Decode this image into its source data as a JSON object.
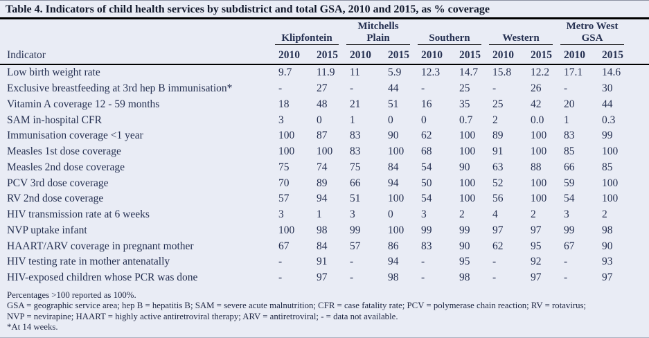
{
  "title": "Table 4. Indicators of child health services by subdistrict and total GSA, 2010 and 2015, as % coverage",
  "table": {
    "indicator_header": "Indicator",
    "year_columns": [
      "2010",
      "2015"
    ],
    "groups": [
      {
        "label": "Klipfontein"
      },
      {
        "label": "Mitchells Plain"
      },
      {
        "label": "Southern"
      },
      {
        "label": "Western"
      },
      {
        "label": "Metro West GSA"
      }
    ],
    "rows": [
      {
        "indicator": "Low birth weight rate",
        "values": [
          "9.7",
          "11.9",
          "11",
          "5.9",
          "12.3",
          "14.7",
          "15.8",
          "12.2",
          "17.1",
          "14.6"
        ]
      },
      {
        "indicator": "Exclusive breastfeeding at 3rd hep B immunisation*",
        "values": [
          "-",
          "27",
          "-",
          "44",
          "-",
          "25",
          "-",
          "26",
          "-",
          "30"
        ]
      },
      {
        "indicator": "Vitamin A coverage 12 - 59 months",
        "values": [
          "18",
          "48",
          "21",
          "51",
          "16",
          "35",
          "25",
          "42",
          "20",
          "44"
        ]
      },
      {
        "indicator": "SAM in-hospital CFR",
        "values": [
          "3",
          "0",
          "1",
          "0",
          "0",
          "0.7",
          "2",
          "0.0",
          "1",
          "0.3"
        ]
      },
      {
        "indicator": "Immunisation coverage <1 year",
        "values": [
          "100",
          "87",
          "83",
          "90",
          "62",
          "100",
          "89",
          "100",
          "83",
          "99"
        ]
      },
      {
        "indicator": "Measles 1st dose coverage",
        "values": [
          "100",
          "100",
          "83",
          "100",
          "68",
          "100",
          "91",
          "100",
          "85",
          "100"
        ]
      },
      {
        "indicator": "Measles 2nd dose coverage",
        "values": [
          "75",
          "74",
          "75",
          "84",
          "54",
          "90",
          "63",
          "88",
          "66",
          "85"
        ]
      },
      {
        "indicator": "PCV 3rd dose coverage",
        "values": [
          "70",
          "89",
          "66",
          "94",
          "50",
          "100",
          "52",
          "100",
          "59",
          "100"
        ]
      },
      {
        "indicator": "RV 2nd dose coverage",
        "values": [
          "57",
          "94",
          "51",
          "100",
          "54",
          "100",
          "56",
          "100",
          "54",
          "100"
        ]
      },
      {
        "indicator": "HIV transmission rate at 6 weeks",
        "values": [
          "3",
          "1",
          "3",
          "0",
          "3",
          "2",
          "4",
          "2",
          "3",
          "2"
        ]
      },
      {
        "indicator": "NVP uptake infant",
        "values": [
          "100",
          "98",
          "99",
          "100",
          "99",
          "99",
          "97",
          "97",
          "99",
          "98"
        ]
      },
      {
        "indicator": "HAART/ARV coverage in pregnant mother",
        "values": [
          "67",
          "84",
          "57",
          "86",
          "83",
          "90",
          "62",
          "95",
          "67",
          "90"
        ]
      },
      {
        "indicator": "HIV testing rate in mother antenatally",
        "values": [
          "-",
          "91",
          "-",
          "94",
          "-",
          "95",
          "-",
          "92",
          "-",
          "93"
        ]
      },
      {
        "indicator": "HIV-exposed children whose PCR was done",
        "values": [
          "-",
          "97",
          "-",
          "98",
          "-",
          "98",
          "-",
          "97",
          "-",
          "97"
        ]
      }
    ]
  },
  "footnotes": [
    "Percentages >100 reported as 100%.",
    "GSA = geographic service area; hep B = hepatitis B; SAM = severe acute malnutrition; CFR = case fatality rate; PCV = polymerase chain reaction; RV = rotavirus;",
    "NVP = nevirapine; HAART = highly active antiretroviral therapy; ARV = antiretroviral; - = data not available.",
    "*At 14 weeks."
  ],
  "colors": {
    "background": "#e9ecf5",
    "text": "#253051",
    "title_text": "#131a2c",
    "rule": "#000000"
  }
}
